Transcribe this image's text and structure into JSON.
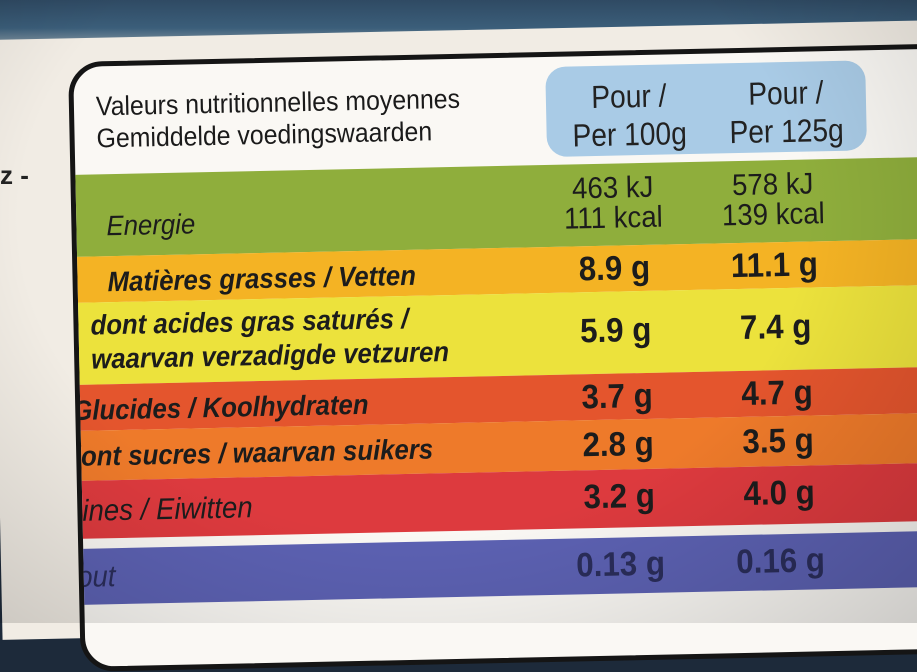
{
  "side_fragment": "z -",
  "header": {
    "line_fr": "Valeurs nutritionnelles moyennes",
    "line_nl": "Gemiddelde voedingswaarden",
    "col1": {
      "line1": "Pour /",
      "line2": "Per 100g"
    },
    "col2": {
      "line1": "Pour /",
      "line2": "Per 125g"
    }
  },
  "rows": [
    {
      "label": "Energie",
      "v100": [
        "463 kJ",
        "111 kcal"
      ],
      "v125": [
        "578 kJ",
        "139 kcal"
      ],
      "color": "#8fae3c"
    },
    {
      "label": "Matières grasses / Vetten",
      "v100": "8.9 g",
      "v125": "11.1 g",
      "color": "#f4b324"
    },
    {
      "label_1": "dont acides gras saturés /",
      "label_2": "waarvan verzadigde vetzuren",
      "v100": "5.9 g",
      "v125": "7.4 g",
      "color": "#ece23c"
    },
    {
      "label": "Glucides / Koolhydraten",
      "v100": "3.7 g",
      "v125": "4.7 g",
      "color": "#e4552d"
    },
    {
      "label": "dont sucres / waarvan suikers",
      "v100": "2.8 g",
      "v125": "3.5 g",
      "color": "#ee7a2a"
    },
    {
      "label": "Protéines / Eiwitten",
      "v100": "3.2 g",
      "v125": "4.0 g",
      "color": "#dd3a3e"
    },
    {
      "label": "el / Zout",
      "v100": "0.13 g",
      "v125": "0.16 g",
      "color": "#5c61b2"
    }
  ]
}
